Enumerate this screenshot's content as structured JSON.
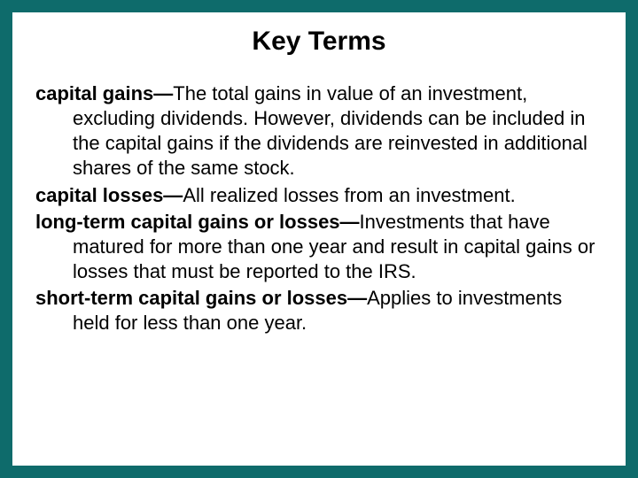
{
  "slide": {
    "title": "Key Terms",
    "title_fontsize": 30,
    "body_fontsize": 22,
    "border_color": "#0e6b6b",
    "background_color": "#ffffff",
    "text_color": "#000000",
    "terms": [
      {
        "label": "capital gains—",
        "definition": "The total gains in value of an investment, excluding dividends. However, dividends can be included in the capital gains if the dividends are reinvested in additional shares of the same stock."
      },
      {
        "label": "capital losses—",
        "definition": "All realized losses from an investment."
      },
      {
        "label": "long-term capital gains or losses—",
        "definition": "Investments that have matured for more than one year and result in capital gains or losses that must be reported to the IRS."
      },
      {
        "label": "short-term capital gains or losses—",
        "definition": "Applies to investments held for less than one year."
      }
    ]
  }
}
